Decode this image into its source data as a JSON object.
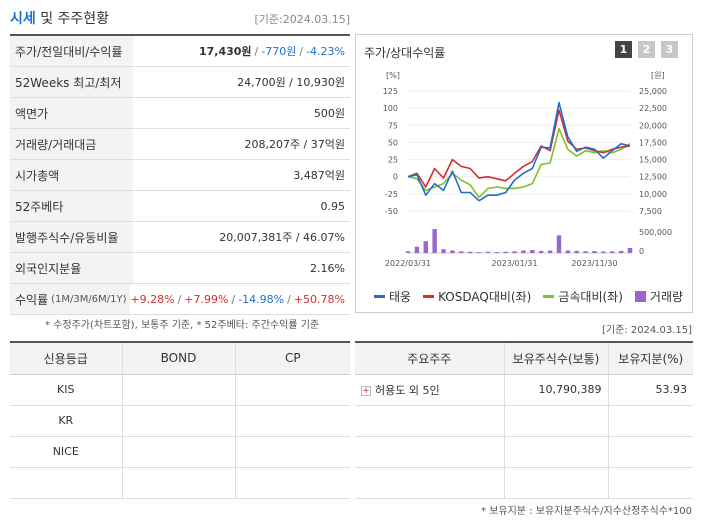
{
  "header": {
    "title_accent": "시세",
    "title_rest": " 및 주주현황",
    "date": "[기준:2024.03.15]"
  },
  "stats": [
    {
      "label": "주가/전일대비/수익률",
      "price": "17,430원",
      "change": "-770원",
      "rate": "-4.23%"
    },
    {
      "label": "52Weeks 최고/최저",
      "value": "24,700원 / 10,930원"
    },
    {
      "label": "액면가",
      "value": "500원"
    },
    {
      "label": "거래량/거래대금",
      "value": "208,207주 / 37억원"
    },
    {
      "label": "시가총액",
      "value": "3,487억원"
    },
    {
      "label": "52주베타",
      "value": "0.95"
    },
    {
      "label": "발행주식수/유동비율",
      "value": "20,007,381주 / 46.07%"
    },
    {
      "label": "외국인지분율",
      "value": "2.16%"
    },
    {
      "label": "수익률",
      "sub": "(1M/3M/6M/1Y)",
      "r1": "+9.28%",
      "r2": "+7.99%",
      "r3": "-14.98%",
      "r4": "+50.78%"
    }
  ],
  "left_note": "* 수정주가(차트포함), 보통주 기준, * 52주베타: 주간수익률 기준",
  "chart": {
    "title": "주가/상대수익률",
    "tabs": [
      "1",
      "2",
      "3"
    ]
  },
  "chart_data": {
    "type": "line",
    "left_axis_unit": "[%]",
    "right_axis_unit": "[원]",
    "left_ticks": [
      "125",
      "100",
      "75",
      "50",
      "25",
      "0",
      "-25",
      "-50"
    ],
    "right_ticks": [
      "25,000",
      "22,500",
      "20,000",
      "17,500",
      "15,000",
      "12,500",
      "10,000",
      "7,500"
    ],
    "volume_ticks": [
      "500,000",
      "0"
    ],
    "x_ticks": [
      "2022/03/31",
      "2023/01/31",
      "2023/11/30"
    ],
    "x": [
      0,
      1,
      2,
      3,
      4,
      5,
      6,
      7,
      8,
      9,
      10,
      11,
      12,
      13,
      14,
      15,
      16,
      17,
      18,
      19,
      20,
      21,
      22,
      23,
      24,
      25
    ],
    "series": [
      {
        "name": "태웅",
        "color": "#1f6fd1",
        "axis": "left",
        "values": [
          0,
          3,
          -27,
          -10,
          -20,
          8,
          -23,
          -23,
          -35,
          -27,
          -27,
          -23,
          -5,
          5,
          12,
          43,
          42,
          108,
          58,
          37,
          43,
          40,
          27,
          38,
          48,
          45
        ]
      },
      {
        "name": "KOSDAQ대비(좌)",
        "color": "#d62d2d",
        "axis": "left",
        "values": [
          0,
          5,
          -15,
          12,
          -2,
          25,
          15,
          12,
          -2,
          0,
          -3,
          -6,
          5,
          15,
          22,
          45,
          38,
          97,
          52,
          40,
          42,
          38,
          35,
          40,
          43,
          45
        ]
      },
      {
        "name": "금속대비(좌)",
        "color": "#7cc12a",
        "axis": "left",
        "values": [
          0,
          -3,
          -20,
          -15,
          -10,
          5,
          -5,
          -12,
          -30,
          -17,
          -15,
          -17,
          -17,
          -15,
          -10,
          18,
          20,
          70,
          40,
          30,
          38,
          35,
          38,
          35,
          40,
          48
        ]
      },
      {
        "name": "거래량",
        "color": "#9966cc",
        "axis": "volume",
        "values": [
          40000,
          150000,
          280000,
          570000,
          90000,
          60000,
          40000,
          30000,
          20000,
          30000,
          20000,
          30000,
          40000,
          60000,
          70000,
          50000,
          60000,
          420000,
          60000,
          50000,
          40000,
          45000,
          35000,
          40000,
          50000,
          120000
        ]
      }
    ],
    "legend": [
      "태웅",
      "KOSDAQ대비(좌)",
      "금속대비(좌)",
      "거래량"
    ]
  },
  "right_date": "[기준: 2024.03.15]",
  "credit": {
    "headers": [
      "신용등급",
      "BOND",
      "CP"
    ],
    "rows": [
      [
        "KIS",
        "",
        ""
      ],
      [
        "KR",
        "",
        ""
      ],
      [
        "NICE",
        "",
        ""
      ],
      [
        "",
        "",
        ""
      ]
    ]
  },
  "holders": {
    "headers": [
      "주요주주",
      "보유주식수(보통)",
      "보유지분(%)"
    ],
    "rows": [
      [
        "허용도 외 5인",
        "10,790,389",
        "53.93"
      ],
      [
        "",
        "",
        ""
      ],
      [
        "",
        "",
        ""
      ],
      [
        "",
        "",
        ""
      ]
    ],
    "note": "* 보유지분 : 보유지분주식수/지수산정주식수*100"
  }
}
